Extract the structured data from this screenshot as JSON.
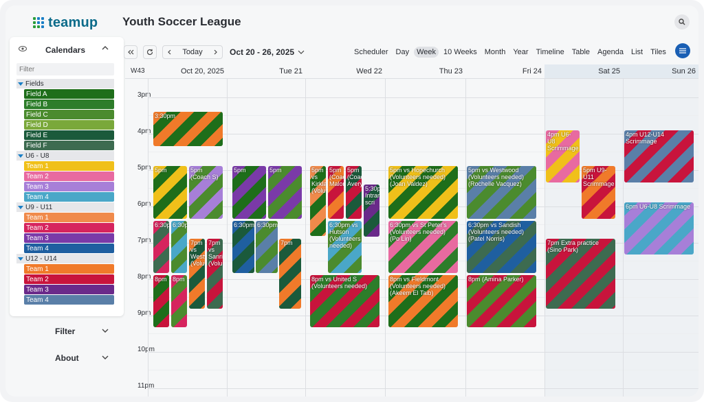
{
  "app": {
    "logo_text": "teamup",
    "title": "Youth Soccer League"
  },
  "sidebar": {
    "title": "Calendars",
    "filter_placeholder": "Filter",
    "groups": [
      {
        "name": "Fields",
        "items": [
          {
            "label": "Field A",
            "color": "#1e6e1a"
          },
          {
            "label": "Field B",
            "color": "#2d7d2a"
          },
          {
            "label": "Field C",
            "color": "#4b8b2e"
          },
          {
            "label": "Field D",
            "color": "#7aa83a"
          },
          {
            "label": "Field E",
            "color": "#1b5a3b"
          },
          {
            "label": "Field F",
            "color": "#3d6b50"
          }
        ]
      },
      {
        "name": "U6 - U8",
        "items": [
          {
            "label": "Team 1",
            "color": "#f0c01a"
          },
          {
            "label": "Team 2",
            "color": "#e86aa0"
          },
          {
            "label": "Team 3",
            "color": "#a77fd8"
          },
          {
            "label": "Team 4",
            "color": "#4aa7c8"
          }
        ]
      },
      {
        "name": "U9 - U11",
        "items": [
          {
            "label": "Team 1",
            "color": "#f08a4b"
          },
          {
            "label": "Team 2",
            "color": "#d6245e"
          },
          {
            "label": "Team 3",
            "color": "#7a3aa8"
          },
          {
            "label": "Team 4",
            "color": "#1f5fa0"
          }
        ]
      },
      {
        "name": "U12 - U14",
        "items": [
          {
            "label": "Team 1",
            "color": "#f07a2a"
          },
          {
            "label": "Team 2",
            "color": "#c8143c"
          },
          {
            "label": "Team 3",
            "color": "#6a2a8a"
          },
          {
            "label": "Team 4",
            "color": "#5a7fa8"
          }
        ]
      }
    ],
    "filter_label": "Filter",
    "about_label": "About"
  },
  "toolbar": {
    "today": "Today",
    "range": "Oct 20 - 26, 2025",
    "views": [
      "Scheduler",
      "Day",
      "Week",
      "10 Weeks",
      "Month",
      "Year",
      "Timeline",
      "Table",
      "Agenda",
      "List",
      "Tiles"
    ],
    "active_view": "Week"
  },
  "grid": {
    "week": "W43",
    "days": [
      "Oct 20, 2025",
      "Tue 21",
      "Wed 22",
      "Thu 23",
      "Fri 24",
      "Sat 25",
      "Sun 26"
    ],
    "hours": [
      "3pm",
      "4pm",
      "5pm",
      "6pm",
      "7pm",
      "8pm",
      "9pm",
      "10pm",
      "11pm"
    ]
  },
  "events": {
    "e1": "3:30pm",
    "e2": "5pm",
    "e3": "5pm (Coach S)",
    "e4": "6:30p",
    "e5": "6:30p",
    "e6": "7pm vs Westwood (Volunteer",
    "e7": "7pm vs Sanriola (Volunteers",
    "e8": "8pm",
    "e9": "8pm",
    "t1": "5pm",
    "t2": "5pm",
    "t3": "6:30pm",
    "t4": "6:30pm",
    "t5": "7pm",
    "w1": "5pm vs Kirkland (Volunteers",
    "w2": "5pm (Coach Malone)",
    "w3": "5pm (Coach Avery)",
    "w4": "5:30p Intramural scri",
    "w5": "6:30pm vs Hutson (Volunteers needed)",
    "w6": "8pm vs United S (Volunteers needed)",
    "h1": "5pm vs Hopechurch (Volunteers needed) (Joan Valdez)",
    "h2": "6:30pm vs St Peter's (Volunteers needed) (Po Lin)",
    "h3": "8pm vs Fieldmont (Volunteers needed) (Akeem El Taib)",
    "f1": "5pm vs Westwood (Volunteers needed) (Rochelle Vacquez)",
    "f2": "6:30pm vs Sandish (Volunteers needed) (Patel Norris)",
    "f3": "8pm (Amina Parker)",
    "s1": "4pm U6-U8 Scrimmage",
    "s2": "5pm U9-U11 Scrimmage",
    "s3": "7pm Extra practice (Sino Park)",
    "u1": "4pm U12-U14 Scrimmage",
    "u2": "6pm U6-U8 Scrimmage"
  }
}
